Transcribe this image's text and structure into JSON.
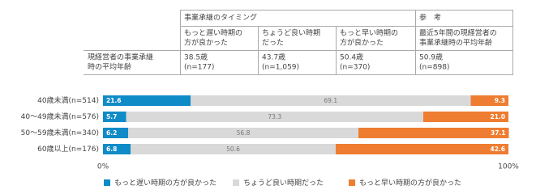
{
  "table": {
    "group_header": "事業承継のタイミング",
    "reference_header": "参　考",
    "columns": [
      [
        "もっと遅い時期の",
        "方が良かった"
      ],
      [
        "ちょうど良い時期",
        "だった"
      ],
      [
        "もっと早い時期の",
        "方が良かった"
      ],
      [
        "最近5年間の現経営者の",
        "事業承継時の平均年齢"
      ]
    ],
    "rows": [
      {
        "label": [
          "現経営者の事業承継",
          "時の平均年齢"
        ],
        "cells": [
          [
            "38.5歳",
            "(n=177)"
          ],
          [
            "43.7歳",
            "(n=1,059)"
          ],
          [
            "50.4歳",
            "(n=370)"
          ],
          [
            "50.9歳",
            "(n=898)"
          ]
        ]
      }
    ]
  },
  "chart_data": {
    "type": "stacked_barh",
    "categories": [
      "40歳未満(n=514)",
      "40～49歳未満(n=576)",
      "50～59歳未満(n=340)",
      "60歳以上(n=176)"
    ],
    "series": [
      {
        "name": "もっと遅い時期の方が良かった",
        "color": "#0f8bc8",
        "values": [
          21.6,
          5.7,
          6.2,
          6.8
        ]
      },
      {
        "name": "ちょうど良い時期だった",
        "color": "#d9d9d9",
        "values": [
          69.1,
          73.3,
          56.8,
          50.6
        ]
      },
      {
        "name": "もっと早い時期の方が良かった",
        "color": "#ee7d31",
        "values": [
          9.3,
          21.0,
          37.1,
          42.6
        ],
        "value_labels": [
          "9.3",
          "21.0",
          "37.1",
          "42.6"
        ]
      }
    ],
    "xlim": [
      0,
      100
    ],
    "xticks": [
      {
        "value": 0,
        "label": "0%"
      },
      {
        "value": 100,
        "label": "100%"
      }
    ],
    "legend": "bottom"
  }
}
